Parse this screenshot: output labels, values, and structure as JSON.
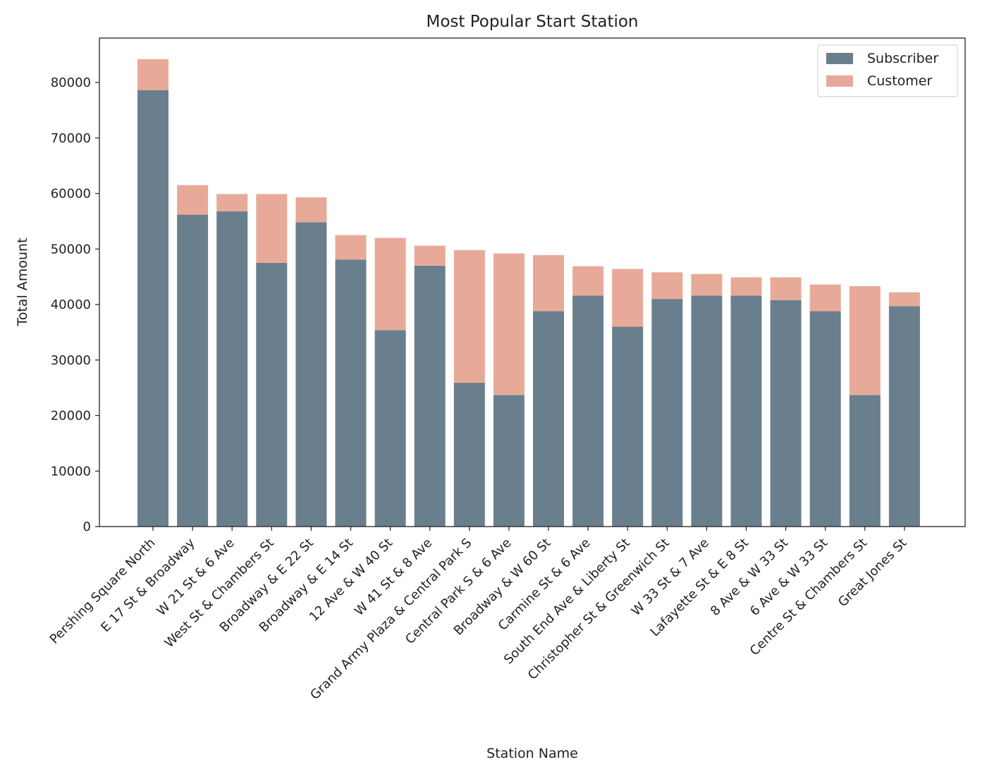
{
  "chart_data": {
    "type": "bar",
    "stacked": true,
    "title": "Most Popular Start Station",
    "xlabel": "Station Name",
    "ylabel": "Total Amount",
    "ylim": [
      0,
      88000
    ],
    "yticks": [
      0,
      10000,
      20000,
      30000,
      40000,
      50000,
      60000,
      70000,
      80000
    ],
    "grid": false,
    "legend_position": "top-right",
    "categories": [
      "Pershing Square North",
      "E 17 St & Broadway",
      "W 21 St & 6 Ave",
      "West St & Chambers St",
      "Broadway & E 22 St",
      "Broadway & E 14 St",
      "12 Ave & W 40 St",
      "W 41 St & 8 Ave",
      "Grand Army Plaza & Central Park S",
      "Central Park S & 6 Ave",
      "Broadway & W 60 St",
      "Carmine St & 6 Ave",
      "South End Ave & Liberty St",
      "Christopher St & Greenwich St",
      "W 33 St & 7 Ave",
      "Lafayette St & E 8 St",
      "8 Ave & W 33 St",
      "6 Ave & W 33 St",
      "Centre St & Chambers St",
      "Great Jones St"
    ],
    "series": [
      {
        "name": "Subscriber",
        "color": "#6a7f8e",
        "values": [
          78600,
          56200,
          56800,
          47500,
          54800,
          48100,
          35400,
          47000,
          25900,
          23700,
          38800,
          41600,
          36000,
          41000,
          41600,
          41600,
          40800,
          38800,
          23700,
          39700
        ]
      },
      {
        "name": "Customer",
        "color": "#e8aa98",
        "values": [
          5600,
          5300,
          3100,
          12400,
          4500,
          4400,
          16600,
          3600,
          23900,
          25500,
          10100,
          5300,
          10400,
          4800,
          3900,
          3300,
          4100,
          4800,
          19600,
          2500
        ]
      }
    ]
  }
}
